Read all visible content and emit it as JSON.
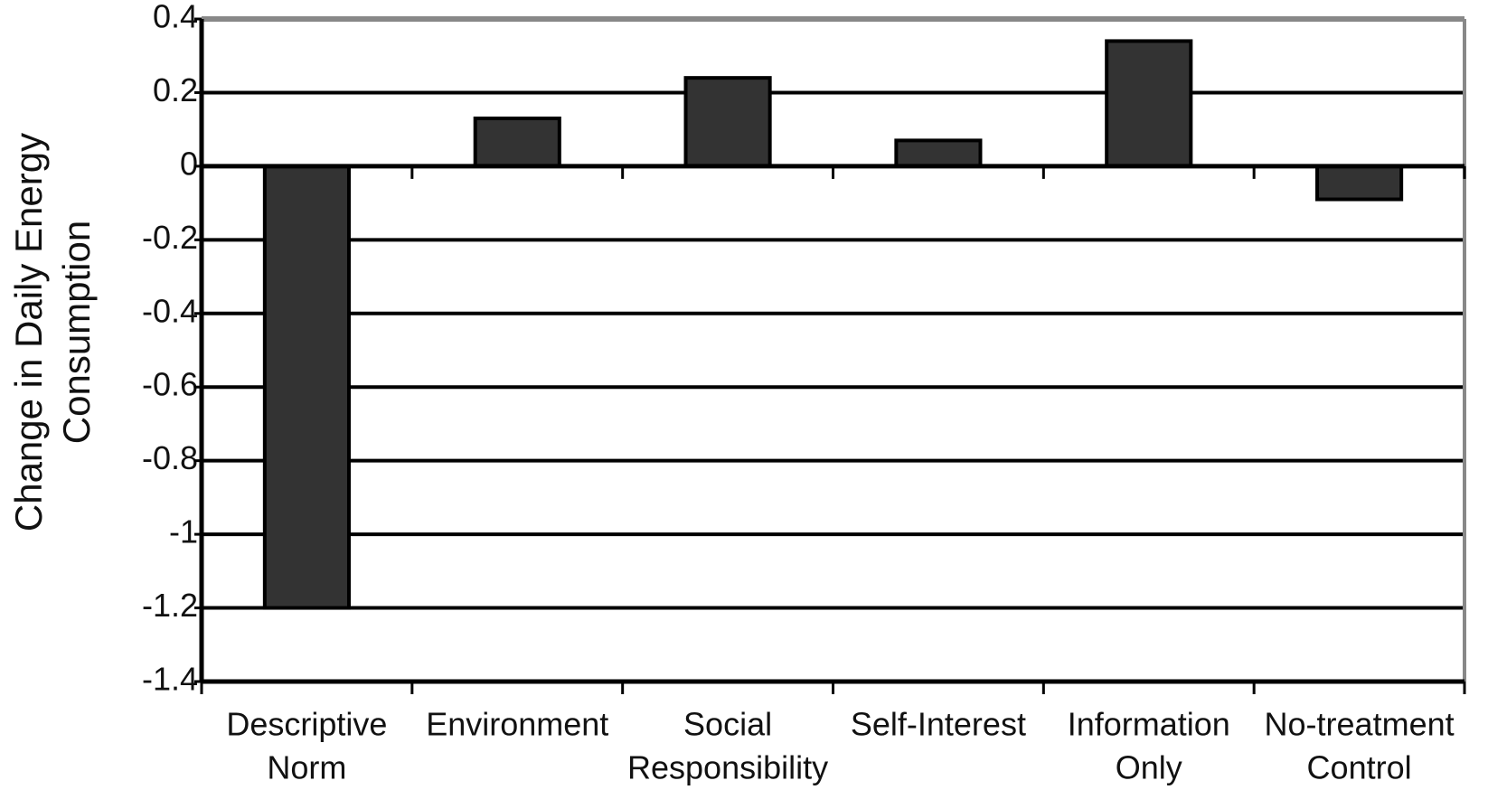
{
  "chart_data": {
    "type": "bar",
    "ylabel": [
      "Change in Daily Energy",
      "Consumption"
    ],
    "categories": [
      [
        "Descriptive",
        "Norm"
      ],
      [
        "Environment"
      ],
      [
        "Social",
        "Responsibility"
      ],
      [
        "Self-Interest"
      ],
      [
        "Information",
        "Only"
      ],
      [
        "No-treatment",
        "Control"
      ]
    ],
    "values": [
      -1.2,
      0.13,
      0.24,
      0.07,
      0.34,
      -0.09
    ],
    "color": "#333333",
    "ylim": [
      -1.4,
      0.4
    ],
    "yticks": [
      0.4,
      0.2,
      0,
      -0.2,
      -0.4,
      -0.6,
      -0.8,
      -1,
      -1.2,
      -1.4
    ],
    "grid": true
  }
}
